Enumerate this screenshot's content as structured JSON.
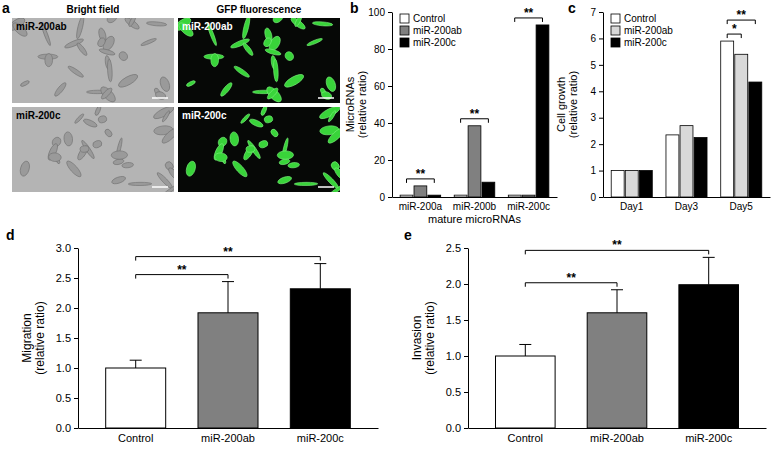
{
  "chart_data": [
    {
      "type": "image_grid",
      "title": "a",
      "column_labels": [
        "Bright field",
        "GFP fluorescence"
      ],
      "row_labels": [
        "miR-200ab",
        "miR-200c"
      ]
    },
    {
      "type": "bar",
      "title": "b",
      "categories": [
        "miR-200a",
        "miR-200b",
        "miR-200c"
      ],
      "series": [
        {
          "name": "Control",
          "color": "#ffffff",
          "values": [
            1,
            1,
            1
          ]
        },
        {
          "name": "miR-200ab",
          "color": "#808080",
          "values": [
            6,
            38.5,
            1
          ]
        },
        {
          "name": "miR-200c",
          "color": "#000000",
          "values": [
            1,
            8,
            93
          ]
        }
      ],
      "ylabel": [
        "MicroRNAs",
        "(relative ratio)"
      ],
      "xlabel": "mature microRNAs",
      "ylim": [
        0,
        100
      ],
      "yticks": [
        0,
        20,
        40,
        60,
        80,
        100
      ],
      "legend": "top-left",
      "significance": [
        {
          "category": "miR-200a",
          "label": "**"
        },
        {
          "category": "miR-200b",
          "label": "**"
        },
        {
          "category": "miR-200c",
          "label": "**"
        }
      ]
    },
    {
      "type": "bar",
      "title": "c",
      "categories": [
        "Day1",
        "Day3",
        "Day5"
      ],
      "series": [
        {
          "name": "Control",
          "color": "#ffffff",
          "values": [
            1,
            2.35,
            5.9
          ]
        },
        {
          "name": "miR-200ab",
          "color": "#d9d9d9",
          "values": [
            1,
            2.7,
            5.4
          ]
        },
        {
          "name": "miR-200c",
          "color": "#000000",
          "values": [
            1,
            2.25,
            4.35
          ]
        }
      ],
      "ylabel": [
        "Cell growth",
        "(relative ratio)"
      ],
      "ylim": [
        0,
        7
      ],
      "yticks": [
        0,
        1,
        2,
        3,
        4,
        5,
        6,
        7
      ],
      "legend": "top-left",
      "significance": [
        {
          "category": "Day5",
          "from": "Control",
          "to": "miR-200ab",
          "label": "*"
        },
        {
          "category": "Day5",
          "from": "Control",
          "to": "miR-200c",
          "label": "**"
        }
      ]
    },
    {
      "type": "bar",
      "title": "d",
      "categories": [
        "Control",
        "miR-200ab",
        "miR-200c"
      ],
      "values": [
        1,
        1.92,
        2.32
      ],
      "errors": [
        0.13,
        0.52,
        0.42
      ],
      "colors": [
        "#ffffff",
        "#808080",
        "#000000"
      ],
      "ylabel": [
        "Migration",
        "(relative ratio)"
      ],
      "ylim": [
        0,
        3
      ],
      "yticks": [
        {
          "value": 0,
          "label": "0.0"
        },
        0.5,
        {
          "value": 1,
          "label": "1.0"
        },
        1.5,
        {
          "value": 2,
          "label": "2.0"
        },
        2.5,
        {
          "value": 3,
          "label": "3.0"
        }
      ],
      "significance": [
        {
          "from": "Control",
          "to": "miR-200ab",
          "label": "**"
        },
        {
          "from": "Control",
          "to": "miR-200c",
          "label": "**"
        }
      ]
    },
    {
      "type": "bar",
      "title": "e",
      "categories": [
        "Control",
        "miR-200ab",
        "miR-200c"
      ],
      "values": [
        1,
        1.6,
        1.99
      ],
      "errors": [
        0.16,
        0.32,
        0.38
      ],
      "colors": [
        "#ffffff",
        "#808080",
        "#000000"
      ],
      "ylabel": [
        "Invasion",
        "(relative ratio)"
      ],
      "ylim": [
        0,
        2.5
      ],
      "yticks": [
        {
          "value": 0,
          "label": "0.0"
        },
        0.5,
        {
          "value": 1,
          "label": "1.0"
        },
        1.5,
        {
          "value": 2,
          "label": "2.0"
        },
        2.5
      ],
      "significance": [
        {
          "from": "Control",
          "to": "miR-200ab",
          "label": "**"
        },
        {
          "from": "Control",
          "to": "miR-200c",
          "label": "**"
        }
      ]
    }
  ]
}
